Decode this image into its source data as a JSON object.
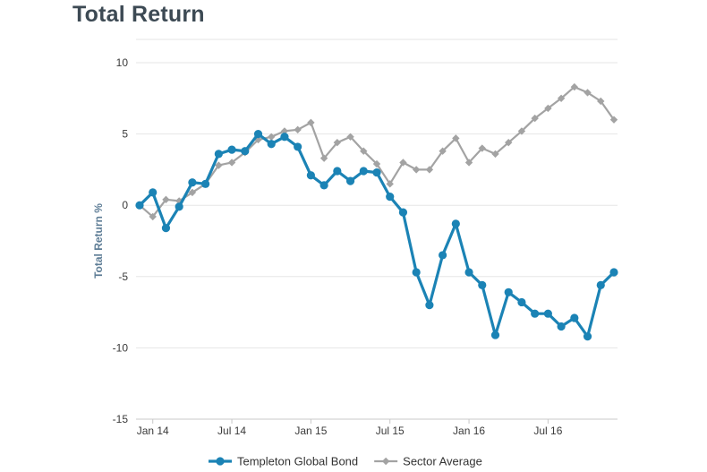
{
  "page_title": "Total Return",
  "colors": {
    "series_primary": "#1b83b5",
    "series_secondary": "#a3a3a3",
    "grid": "#e6e6e6",
    "axis": "#c8c8c8"
  },
  "chart_data": {
    "type": "line",
    "title": "Total Return",
    "ylabel": "Total Return %",
    "xlabel": "",
    "ylim": [
      -15,
      10
    ],
    "yticks": [
      -15,
      -10,
      -5,
      0,
      5,
      10
    ],
    "x": [
      "Dec 13",
      "Jan 14",
      "Feb 14",
      "Mar 14",
      "Apr 14",
      "May 14",
      "Jun 14",
      "Jul 14",
      "Aug 14",
      "Sep 14",
      "Oct 14",
      "Nov 14",
      "Dec 14",
      "Jan 15",
      "Feb 15",
      "Mar 15",
      "Apr 15",
      "May 15",
      "Jun 15",
      "Jul 15",
      "Aug 15",
      "Sep 15",
      "Oct 15",
      "Nov 15",
      "Dec 15",
      "Jan 16",
      "Feb 16",
      "Mar 16",
      "Apr 16",
      "May 16",
      "Jun 16",
      "Jul 16",
      "Aug 16",
      "Sep 16",
      "Oct 16",
      "Nov 16",
      "Dec 16"
    ],
    "xtick_labels": [
      {
        "label": "Jan 14",
        "x": "Jan 14"
      },
      {
        "label": "Jul 14",
        "x": "Jul 14"
      },
      {
        "label": "Jan 15",
        "x": "Jan 15"
      },
      {
        "label": "Jul 15",
        "x": "Jul 15"
      },
      {
        "label": "Jan 16",
        "x": "Jan 16"
      },
      {
        "label": "Jul 16",
        "x": "Jul 16"
      }
    ],
    "grid": true,
    "legend": "bottom-center",
    "series": [
      {
        "name": "Templeton Global Bond",
        "marker": "circle",
        "values": [
          0,
          0.9,
          -1.6,
          -0.1,
          1.6,
          1.5,
          3.6,
          3.9,
          3.8,
          5.0,
          4.3,
          4.8,
          4.1,
          2.1,
          1.4,
          2.4,
          1.7,
          2.4,
          2.3,
          0.6,
          -0.5,
          -4.7,
          -7.0,
          -3.5,
          -1.3,
          -4.7,
          -5.6,
          -9.1,
          -6.1,
          -6.8,
          -7.6,
          -7.6,
          -8.5,
          -7.9,
          -9.2,
          -5.6,
          -4.7
        ]
      },
      {
        "name": "Sector Average",
        "marker": "diamond",
        "values": [
          0,
          -0.8,
          0.4,
          0.3,
          0.9,
          1.5,
          2.8,
          3.0,
          3.7,
          4.6,
          4.8,
          5.2,
          5.3,
          5.8,
          3.3,
          4.4,
          4.8,
          3.8,
          2.9,
          1.5,
          3.0,
          2.5,
          2.5,
          3.8,
          4.7,
          3.0,
          4.0,
          3.6,
          4.4,
          5.2,
          6.1,
          6.8,
          7.5,
          8.3,
          7.9,
          7.3,
          6.0
        ]
      }
    ]
  }
}
